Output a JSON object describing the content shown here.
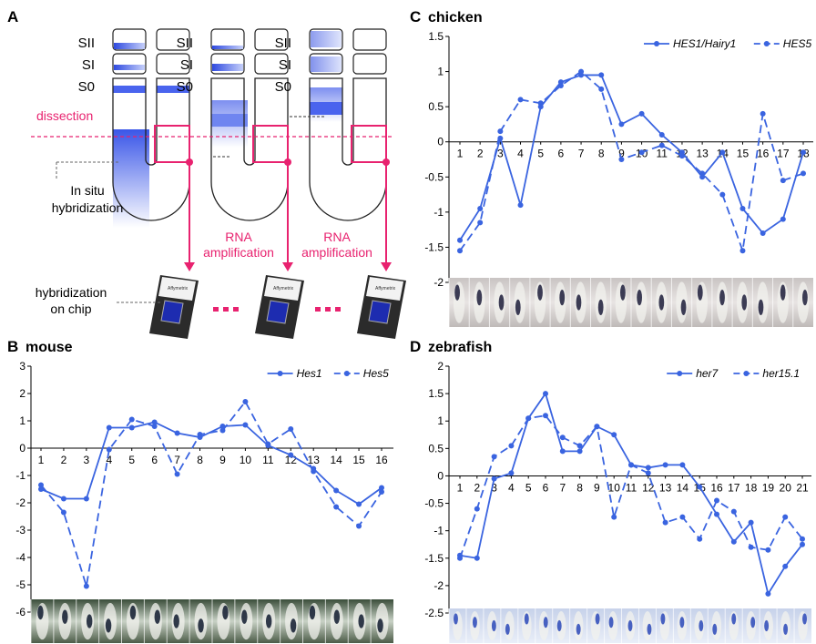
{
  "panelA": {
    "letter": "A",
    "somite_labels": [
      "SII",
      "SI",
      "S0"
    ],
    "dissection": "dissection",
    "in_situ": [
      "In situ",
      "hybridization"
    ],
    "rna": [
      "RNA",
      "amplification"
    ],
    "chip_label": [
      "hybridization",
      "on chip"
    ],
    "chip_text": "Affymetrix",
    "colors": {
      "magenta": "#e8226f",
      "blue": "#3a56e8"
    }
  },
  "chart_data": [
    {
      "id": "B",
      "letter": "B",
      "organism": "mouse",
      "type": "line",
      "x": [
        1,
        2,
        3,
        4,
        5,
        6,
        7,
        8,
        9,
        10,
        11,
        12,
        13,
        14,
        15,
        16
      ],
      "ylim": [
        -6,
        3
      ],
      "yticks": [
        3,
        2,
        1,
        0,
        -1,
        -2,
        -3,
        -4,
        -5,
        -6
      ],
      "series": [
        {
          "name": "Hes1",
          "style": "solid",
          "color": "#3a64e0",
          "values": [
            -1.5,
            -1.85,
            -1.85,
            0.75,
            0.75,
            0.95,
            0.55,
            0.4,
            0.8,
            0.85,
            0.1,
            -0.25,
            -0.75,
            -1.55,
            -2.05,
            -1.45
          ]
        },
        {
          "name": "Hes5",
          "style": "dashed",
          "color": "#3a64e0",
          "values": [
            -1.35,
            -2.35,
            -5.05,
            -0.05,
            1.05,
            0.8,
            -0.95,
            0.5,
            0.65,
            1.7,
            0.15,
            0.7,
            -0.85,
            -2.15,
            -2.85,
            -1.6
          ]
        }
      ]
    },
    {
      "id": "C",
      "letter": "C",
      "organism": "chicken",
      "type": "line",
      "x": [
        1,
        2,
        3,
        4,
        5,
        6,
        7,
        8,
        9,
        10,
        11,
        12,
        13,
        14,
        15,
        16,
        17,
        18
      ],
      "ylim": [
        -2,
        1.5
      ],
      "yticks": [
        "1.5",
        "1",
        "0.5",
        "0",
        "-0.5",
        "-1",
        "-1.5",
        "-2"
      ],
      "series": [
        {
          "name": "HES1/Hairy1",
          "style": "solid",
          "color": "#3a64e0",
          "values": [
            -1.4,
            -0.95,
            0.05,
            -0.9,
            0.5,
            0.85,
            0.95,
            0.95,
            0.25,
            0.4,
            0.1,
            -0.15,
            -0.5,
            -0.15,
            -0.95,
            -1.3,
            -1.1,
            -0.15
          ]
        },
        {
          "name": "HES5",
          "style": "dashed",
          "color": "#3a64e0",
          "values": [
            -1.55,
            -1.15,
            0.15,
            0.6,
            0.55,
            0.8,
            1.0,
            0.75,
            -0.25,
            -0.15,
            -0.05,
            -0.2,
            -0.45,
            -0.75,
            -1.55,
            0.4,
            -0.55,
            -0.45
          ]
        }
      ]
    },
    {
      "id": "D",
      "letter": "D",
      "organism": "zebrafish",
      "type": "line",
      "x": [
        1,
        2,
        3,
        4,
        5,
        6,
        7,
        8,
        9,
        10,
        11,
        12,
        13,
        14,
        15,
        16,
        17,
        18,
        19,
        20,
        21
      ],
      "ylim": [
        -2.5,
        2
      ],
      "yticks": [
        "2",
        "1.5",
        "1",
        "0.5",
        "0",
        "-0.5",
        "-1",
        "-1.5",
        "-2",
        "-2.5"
      ],
      "series": [
        {
          "name": "her7",
          "style": "solid",
          "color": "#3a64e0",
          "values": [
            -1.45,
            -1.5,
            -0.05,
            0.05,
            1.05,
            1.5,
            0.45,
            0.45,
            0.9,
            0.75,
            0.2,
            0.15,
            0.2,
            0.2,
            -0.2,
            -0.7,
            -1.2,
            -0.85,
            -2.15,
            -1.65,
            -1.25
          ]
        },
        {
          "name": "her15.1",
          "style": "dashed",
          "color": "#3a64e0",
          "values": [
            -1.5,
            -0.6,
            0.35,
            0.55,
            1.05,
            1.1,
            0.7,
            0.55,
            0.9,
            -0.75,
            0.2,
            0.05,
            -0.85,
            -0.75,
            -1.15,
            -0.45,
            -0.65,
            -1.3,
            -1.35,
            -0.75,
            -1.15
          ]
        }
      ]
    }
  ]
}
